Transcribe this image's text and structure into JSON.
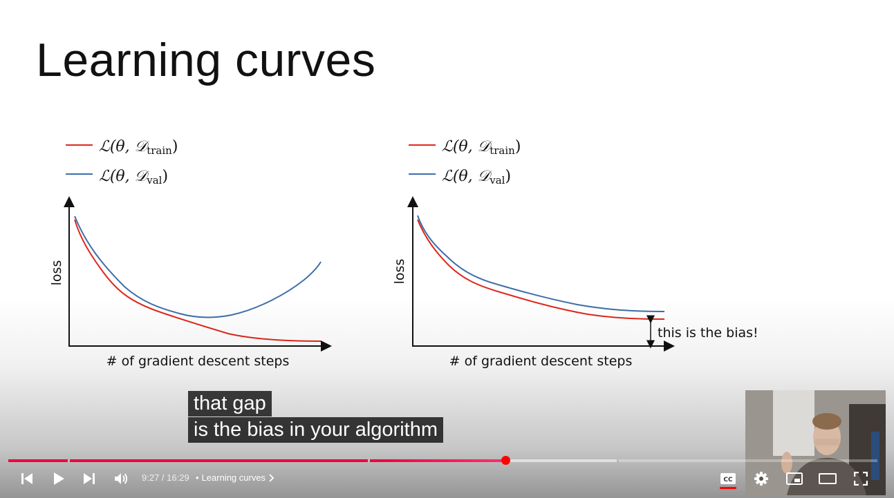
{
  "slide": {
    "title": "Learning curves",
    "legend_left": {
      "train": "ℒ(θ, 𝒟",
      "train_sub": "train",
      "val": "ℒ(θ, 𝒟",
      "val_sub": "val",
      "close": ")"
    },
    "legend_right": {
      "train": "ℒ(θ, 𝒟",
      "train_sub": "train",
      "val": "ℒ(θ, 𝒟",
      "val_sub": "val",
      "close": ")"
    },
    "colors": {
      "train": "#e0261b",
      "val": "#3d6ea8"
    }
  },
  "chart_data": [
    {
      "type": "line",
      "xlabel": "# of gradient descent steps",
      "ylabel": "loss",
      "series": [
        {
          "name": "ℒ(θ, 𝒟train)",
          "color": "#e0261b",
          "shape": "monotone decreasing, overfitting regime"
        },
        {
          "name": "ℒ(θ, 𝒟val)",
          "color": "#3d6ea8",
          "shape": "decreases then rises (U-shape)"
        }
      ]
    },
    {
      "type": "line",
      "xlabel": "# of gradient descent steps",
      "ylabel": "loss",
      "annotation": "this is the bias!",
      "series": [
        {
          "name": "ℒ(θ, 𝒟train)",
          "color": "#e0261b",
          "shape": "decreasing, plateaus above zero"
        },
        {
          "name": "ℒ(θ, 𝒟val)",
          "color": "#3d6ea8",
          "shape": "decreasing, plateaus slightly above train"
        }
      ]
    }
  ],
  "captions": [
    "that gap",
    "is the bias in your algorithm"
  ],
  "player": {
    "time_current": "9:27",
    "time_total": "16:29",
    "time_display": "9:27 / 16:29",
    "chapter_separator": "•",
    "chapter_title": "Learning curves",
    "progress_fraction": 0.574,
    "icons": [
      "skip-previous-icon",
      "play-icon",
      "skip-next-icon",
      "volume-icon",
      "chevron-right-icon",
      "cc-icon",
      "settings-icon",
      "miniplayer-icon",
      "theater-icon",
      "fullscreen-icon"
    ],
    "accent": "#ff0000"
  }
}
